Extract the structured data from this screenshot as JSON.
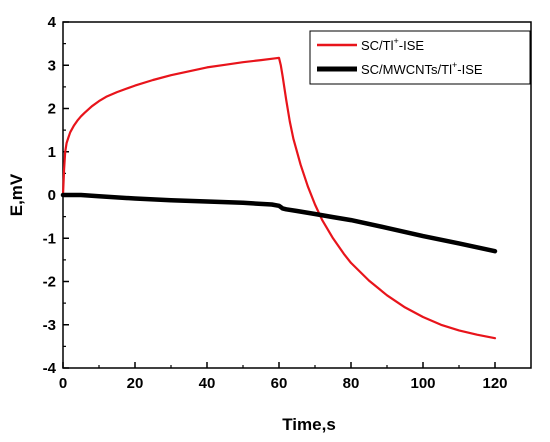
{
  "chart_data": {
    "type": "line",
    "title": "",
    "xlabel": "Time,s",
    "ylabel": "E,mV",
    "xlim": [
      0,
      130
    ],
    "ylim": [
      -4,
      4
    ],
    "x_ticks": [
      0,
      20,
      40,
      60,
      80,
      100,
      120
    ],
    "y_ticks": [
      -4,
      -3,
      -2,
      -1,
      0,
      1,
      2,
      3,
      4
    ],
    "grid": false,
    "legend_position": "top-right",
    "series": [
      {
        "name_main": "SC/Tl",
        "name_sup": "+",
        "name_tail": "-ISE",
        "color": "#e8141b",
        "x": [
          0,
          0.3,
          0.6,
          1,
          1.5,
          2,
          3,
          4,
          5,
          6,
          8,
          10,
          12,
          15,
          18,
          20,
          25,
          30,
          35,
          40,
          45,
          50,
          55,
          59,
          60,
          60.5,
          61,
          62,
          63,
          64,
          66,
          68,
          70,
          72,
          75,
          78,
          80,
          85,
          90,
          95,
          100,
          105,
          110,
          115,
          120
        ],
        "y": [
          0,
          0.6,
          1.0,
          1.2,
          1.33,
          1.45,
          1.6,
          1.72,
          1.82,
          1.9,
          2.05,
          2.17,
          2.27,
          2.38,
          2.47,
          2.53,
          2.66,
          2.77,
          2.86,
          2.95,
          3.01,
          3.07,
          3.12,
          3.16,
          3.17,
          3.0,
          2.75,
          2.2,
          1.7,
          1.3,
          0.7,
          0.2,
          -0.22,
          -0.58,
          -1.0,
          -1.36,
          -1.57,
          -1.98,
          -2.32,
          -2.6,
          -2.82,
          -3.0,
          -3.13,
          -3.23,
          -3.31
        ]
      },
      {
        "name_main": "SC/MWCNTs/Tl",
        "name_sup": "+",
        "name_tail": "-ISE",
        "color": "#000000",
        "x": [
          0,
          5,
          10,
          20,
          30,
          40,
          50,
          58,
          60,
          60.5,
          61,
          62,
          65,
          70,
          75,
          80,
          90,
          100,
          110,
          120
        ],
        "y": [
          0,
          0.0,
          -0.03,
          -0.08,
          -0.12,
          -0.15,
          -0.18,
          -0.22,
          -0.25,
          -0.28,
          -0.31,
          -0.33,
          -0.37,
          -0.44,
          -0.51,
          -0.58,
          -0.76,
          -0.95,
          -1.12,
          -1.3
        ]
      }
    ]
  }
}
